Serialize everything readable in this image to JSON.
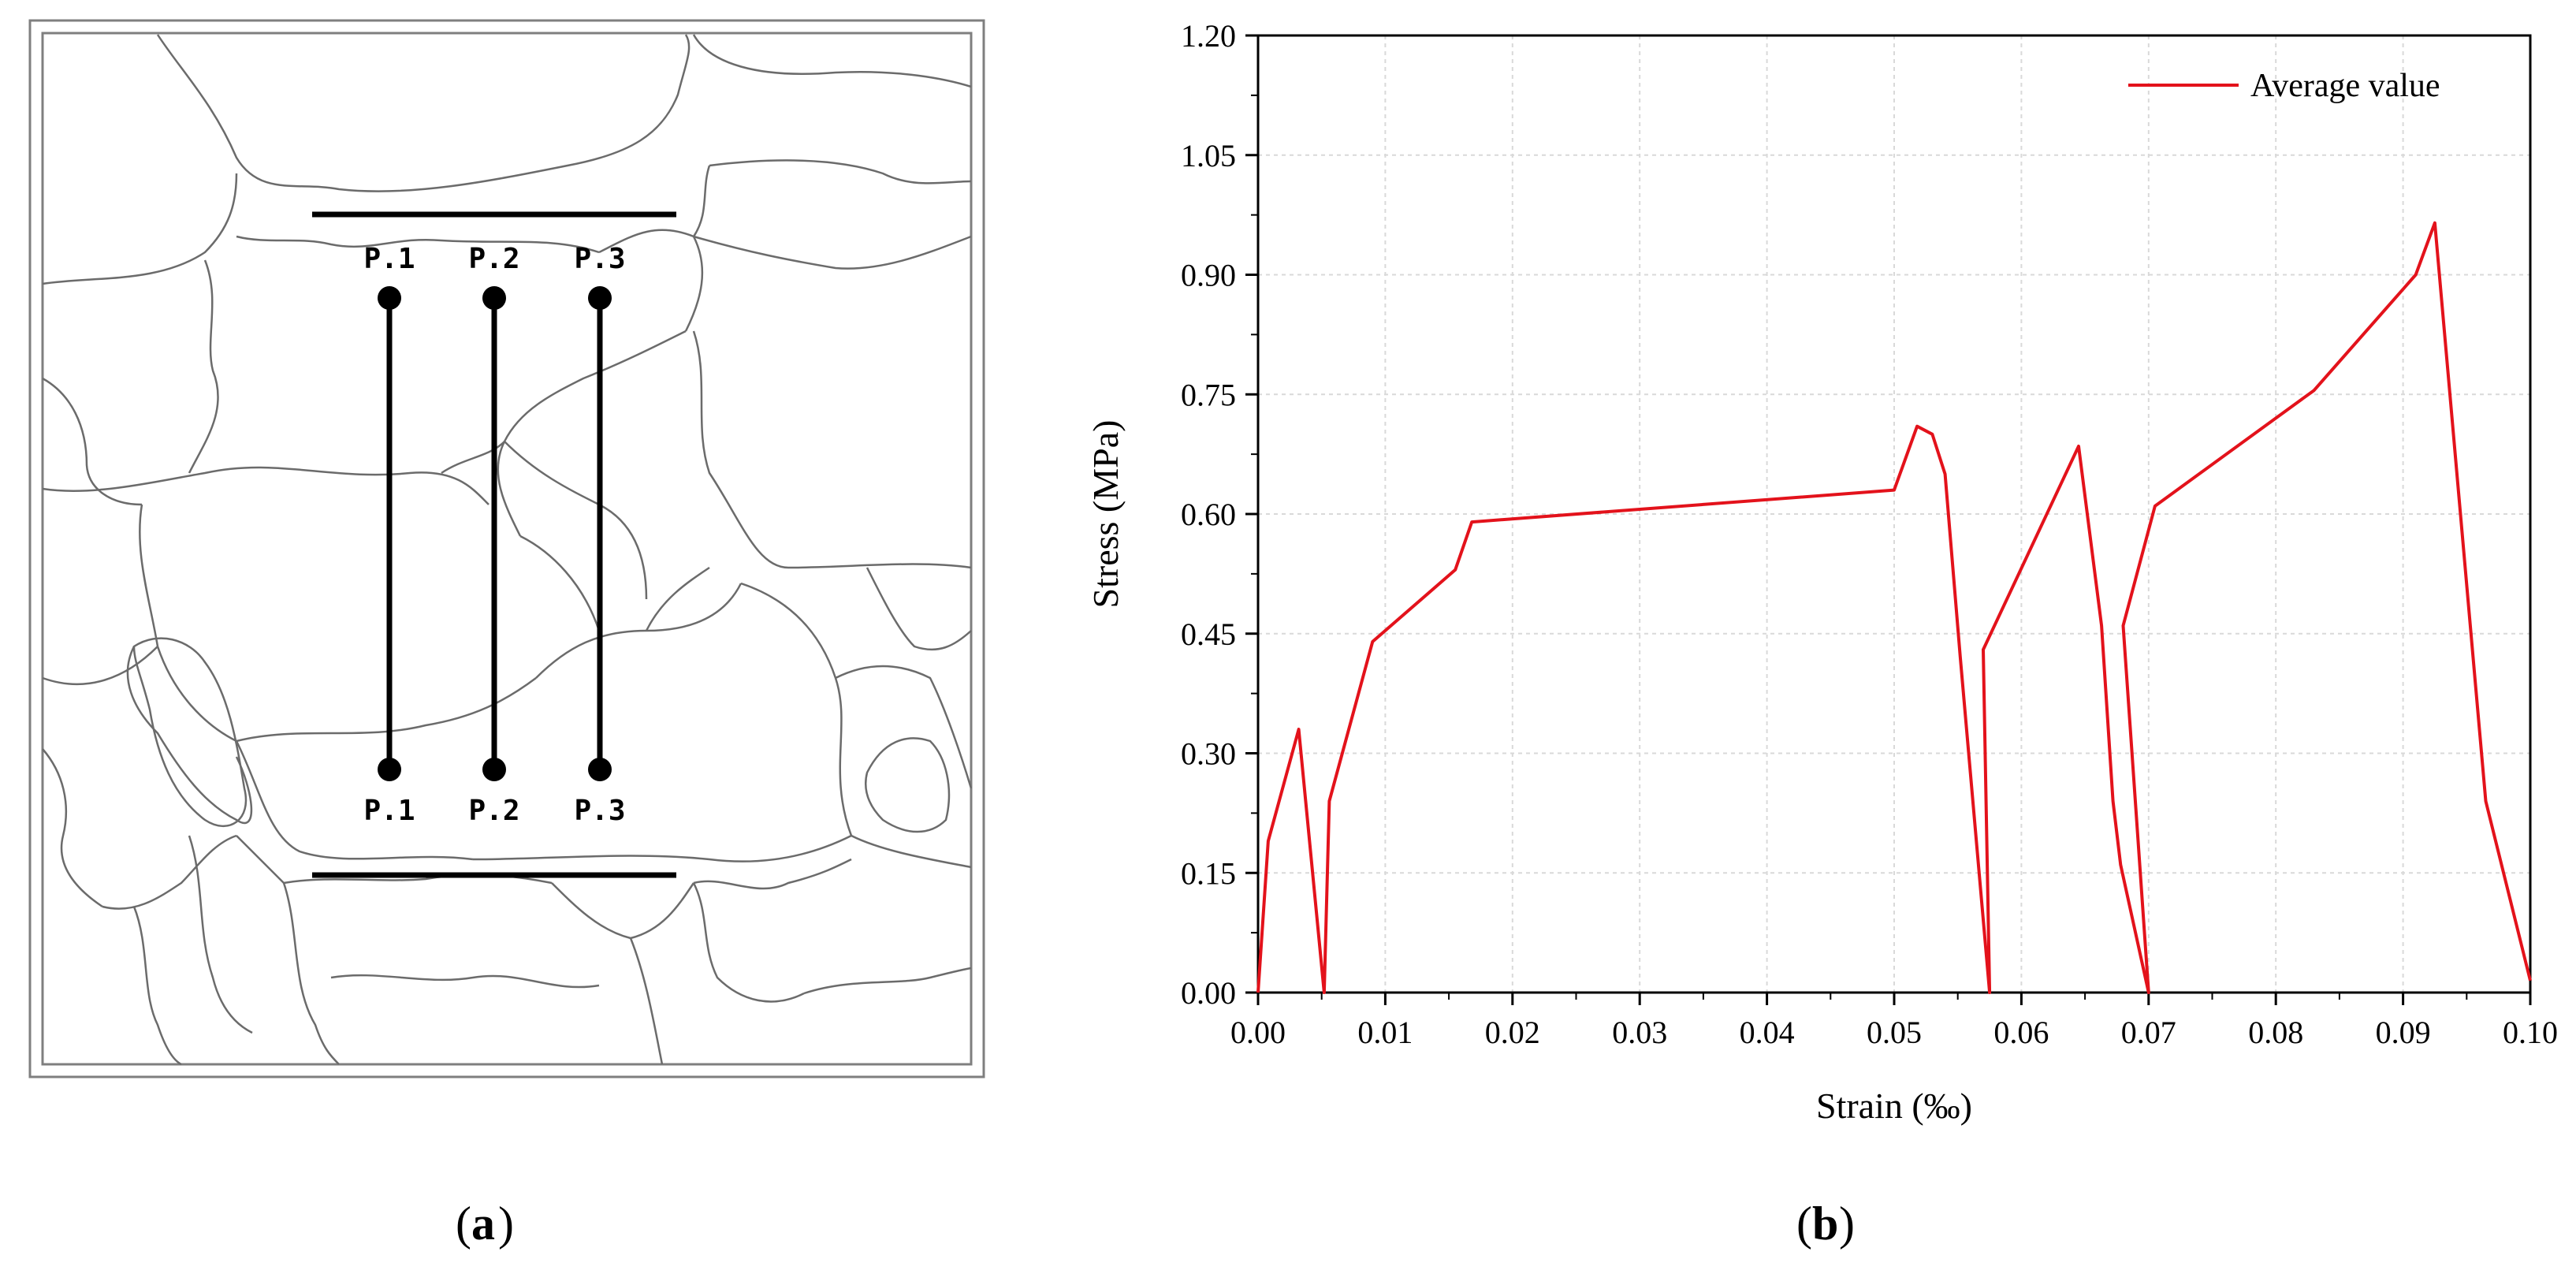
{
  "panel_a": {
    "label": "a",
    "top_points": [
      "P.1",
      "P.2",
      "P.3"
    ],
    "bottom_points": [
      "P.1",
      "P.2",
      "P.3"
    ]
  },
  "panel_b": {
    "label": "b"
  },
  "chart_data": {
    "type": "line",
    "title": "",
    "xlabel": "Strain (‰)",
    "ylabel": "Stress (MPa)",
    "xlim": [
      0.0,
      0.1
    ],
    "ylim": [
      0.0,
      1.2
    ],
    "x_ticks": [
      "0.00",
      "0.01",
      "0.02",
      "0.03",
      "0.04",
      "0.05",
      "0.06",
      "0.07",
      "0.08",
      "0.09",
      "0.10"
    ],
    "y_ticks": [
      "0.00",
      "0.15",
      "0.30",
      "0.45",
      "0.60",
      "0.75",
      "0.90",
      "1.05",
      "1.20"
    ],
    "grid": true,
    "legend_position": "top-right",
    "series": [
      {
        "name": "Average value",
        "color": "#e3121b",
        "x": [
          0.0,
          0.0008,
          0.0032,
          0.0052,
          0.0056,
          0.009,
          0.0155,
          0.0168,
          0.05,
          0.0518,
          0.053,
          0.054,
          0.0552,
          0.0575,
          0.057,
          0.0645,
          0.0663,
          0.0672,
          0.0678,
          0.07,
          0.068,
          0.0705,
          0.083,
          0.091,
          0.0925,
          0.0965,
          0.1
        ],
        "y": [
          0.0,
          0.19,
          0.33,
          0.0,
          0.24,
          0.44,
          0.53,
          0.59,
          0.63,
          0.71,
          0.7,
          0.65,
          0.42,
          0.0,
          0.43,
          0.685,
          0.46,
          0.24,
          0.16,
          0.0,
          0.46,
          0.61,
          0.755,
          0.9,
          0.965,
          0.24,
          0.015
        ]
      }
    ]
  }
}
